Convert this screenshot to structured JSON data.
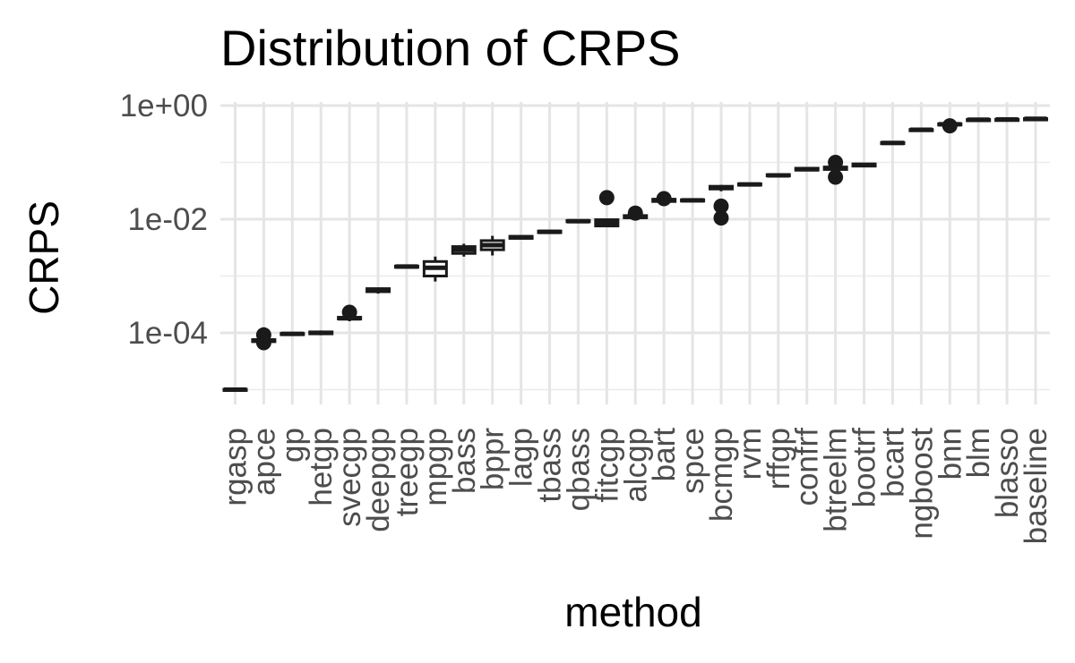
{
  "chart_data": {
    "type": "boxplot",
    "title": "Distribution of CRPS",
    "xlabel": "method",
    "ylabel": "CRPS",
    "y_scale": "log10",
    "ylim": [
      6e-06,
      1.2
    ],
    "y_ticks": [
      {
        "value": 0.0001,
        "label": "1e-04"
      },
      {
        "value": 0.01,
        "label": "1e-02"
      },
      {
        "value": 1,
        "label": "1e+00"
      }
    ],
    "grid": true,
    "legend": "none",
    "categories": [
      "rgasp",
      "apce",
      "gp",
      "hetgp",
      "svecgp",
      "deepgp",
      "treegp",
      "mpgp",
      "bass",
      "bppr",
      "lagp",
      "tbass",
      "qbass",
      "fitcgp",
      "alcgp",
      "bart",
      "spce",
      "bcmgp",
      "rvm",
      "rffgp",
      "confrf",
      "btreelm",
      "bootrf",
      "bcart",
      "ngboost",
      "bnn",
      "blm",
      "blasso",
      "baseline"
    ],
    "boxes": [
      {
        "method": "rgasp",
        "low": 9.6e-06,
        "q1": 9.9e-06,
        "median": 1e-05,
        "q3": 1.02e-05,
        "high": 1.04e-05,
        "outliers": []
      },
      {
        "method": "apce",
        "low": 6.6e-05,
        "q1": 7e-05,
        "median": 7.3e-05,
        "q3": 7.6e-05,
        "high": 8e-05,
        "outliers": [
          9.2e-05,
          6.7e-05
        ]
      },
      {
        "method": "gp",
        "low": 9.1e-05,
        "q1": 9.4e-05,
        "median": 9.6e-05,
        "q3": 9.8e-05,
        "high": 0.0001,
        "outliers": []
      },
      {
        "method": "hetgp",
        "low": 9.1e-05,
        "q1": 9.6e-05,
        "median": 0.0001,
        "q3": 0.000104,
        "high": 0.00011,
        "outliers": []
      },
      {
        "method": "svecgp",
        "low": 0.00016,
        "q1": 0.000175,
        "median": 0.00018,
        "q3": 0.000188,
        "high": 0.000195,
        "outliers": [
          0.00023
        ]
      },
      {
        "method": "deepgp",
        "low": 0.00049,
        "q1": 0.00053,
        "median": 0.000565,
        "q3": 0.0006,
        "high": 0.00063,
        "outliers": []
      },
      {
        "method": "treegp",
        "low": 0.0014,
        "q1": 0.00144,
        "median": 0.00147,
        "q3": 0.0015,
        "high": 0.00154,
        "outliers": []
      },
      {
        "method": "mpgp",
        "low": 0.0008,
        "q1": 0.001,
        "median": 0.0014,
        "q3": 0.0018,
        "high": 0.0022,
        "outliers": []
      },
      {
        "method": "bass",
        "low": 0.0022,
        "q1": 0.0025,
        "median": 0.0029,
        "q3": 0.0033,
        "high": 0.0037,
        "outliers": []
      },
      {
        "method": "bppr",
        "low": 0.0023,
        "q1": 0.0029,
        "median": 0.0035,
        "q3": 0.0042,
        "high": 0.0051,
        "outliers": []
      },
      {
        "method": "lagp",
        "low": 0.0044,
        "q1": 0.0046,
        "median": 0.0048,
        "q3": 0.005,
        "high": 0.0052,
        "outliers": []
      },
      {
        "method": "tbass",
        "low": 0.0056,
        "q1": 0.0058,
        "median": 0.006,
        "q3": 0.0062,
        "high": 0.0065,
        "outliers": []
      },
      {
        "method": "qbass",
        "low": 0.0088,
        "q1": 0.009,
        "median": 0.0092,
        "q3": 0.0095,
        "high": 0.0098,
        "outliers": []
      },
      {
        "method": "fitcgp",
        "low": 0.0074,
        "q1": 0.0076,
        "median": 0.0085,
        "q3": 0.0098,
        "high": 0.0103,
        "outliers": [
          0.024
        ]
      },
      {
        "method": "alcgp",
        "low": 0.0103,
        "q1": 0.0106,
        "median": 0.011,
        "q3": 0.0116,
        "high": 0.0122,
        "outliers": [
          0.0128
        ]
      },
      {
        "method": "bart",
        "low": 0.0195,
        "q1": 0.0205,
        "median": 0.0215,
        "q3": 0.0225,
        "high": 0.0235,
        "outliers": [
          0.023
        ]
      },
      {
        "method": "spce",
        "low": 0.0205,
        "q1": 0.021,
        "median": 0.0215,
        "q3": 0.022,
        "high": 0.0225,
        "outliers": []
      },
      {
        "method": "bcmgp",
        "low": 0.031,
        "q1": 0.034,
        "median": 0.036,
        "q3": 0.038,
        "high": 0.04,
        "outliers": [
          0.017,
          0.0105
        ]
      },
      {
        "method": "rvm",
        "low": 0.039,
        "q1": 0.04,
        "median": 0.041,
        "q3": 0.042,
        "high": 0.043,
        "outliers": []
      },
      {
        "method": "rffgp",
        "low": 0.056,
        "q1": 0.058,
        "median": 0.059,
        "q3": 0.061,
        "high": 0.063,
        "outliers": []
      },
      {
        "method": "confrf",
        "low": 0.07,
        "q1": 0.073,
        "median": 0.076,
        "q3": 0.079,
        "high": 0.083,
        "outliers": []
      },
      {
        "method": "btreelm",
        "low": 0.072,
        "q1": 0.075,
        "median": 0.079,
        "q3": 0.083,
        "high": 0.087,
        "outliers": [
          0.1,
          0.055
        ]
      },
      {
        "method": "bootrf",
        "low": 0.082,
        "q1": 0.086,
        "median": 0.09,
        "q3": 0.094,
        "high": 0.098,
        "outliers": []
      },
      {
        "method": "bcart",
        "low": 0.21,
        "q1": 0.215,
        "median": 0.22,
        "q3": 0.225,
        "high": 0.23,
        "outliers": []
      },
      {
        "method": "ngboost",
        "low": 0.36,
        "q1": 0.37,
        "median": 0.375,
        "q3": 0.38,
        "high": 0.385,
        "outliers": []
      },
      {
        "method": "bnn",
        "low": 0.44,
        "q1": 0.455,
        "median": 0.47,
        "q3": 0.48,
        "high": 0.49,
        "outliers": [
          0.44
        ]
      },
      {
        "method": "blm",
        "low": 0.55,
        "q1": 0.56,
        "median": 0.565,
        "q3": 0.57,
        "high": 0.58,
        "outliers": []
      },
      {
        "method": "blasso",
        "low": 0.56,
        "q1": 0.565,
        "median": 0.57,
        "q3": 0.575,
        "high": 0.58,
        "outliers": []
      },
      {
        "method": "baseline",
        "low": 0.57,
        "q1": 0.58,
        "median": 0.585,
        "q3": 0.59,
        "high": 0.6,
        "outliers": []
      }
    ]
  }
}
